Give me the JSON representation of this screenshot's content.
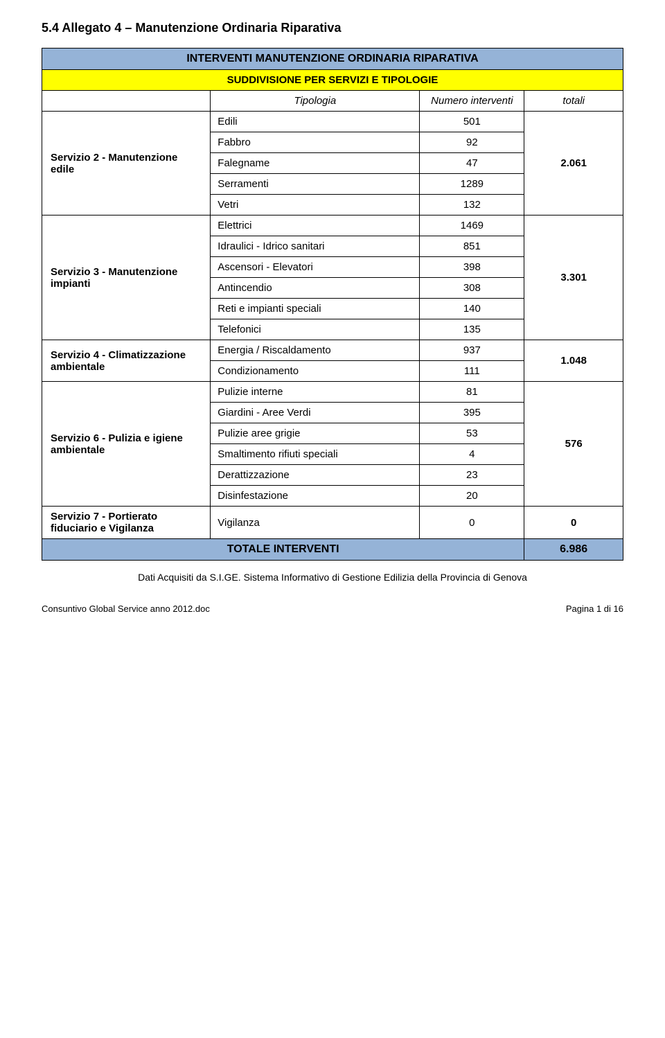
{
  "heading": "5.4   Allegato 4 – Manutenzione Ordinaria Riparativa",
  "table": {
    "header_title": "INTERVENTI MANUTENZIONE ORDINARIA RIPARATIVA",
    "sub_header": "SUDDIVISIONE PER SERVIZI E TIPOLOGIE",
    "col_tipologia": "Tipologia",
    "col_numero": "Numero interventi",
    "col_totali": "totali",
    "groups": [
      {
        "service": "Servizio 2 - Manutenzione edile",
        "totale": "2.061",
        "rows": [
          {
            "t": "Edili",
            "n": "501"
          },
          {
            "t": "Fabbro",
            "n": "92"
          },
          {
            "t": "Falegname",
            "n": "47"
          },
          {
            "t": "Serramenti",
            "n": "1289"
          },
          {
            "t": "Vetri",
            "n": "132"
          }
        ]
      },
      {
        "service": "Servizio 3 - Manutenzione impianti",
        "totale": "3.301",
        "rows": [
          {
            "t": "Elettrici",
            "n": "1469"
          },
          {
            "t": "Idraulici - Idrico sanitari",
            "n": "851"
          },
          {
            "t": "Ascensori - Elevatori",
            "n": "398"
          },
          {
            "t": "Antincendio",
            "n": "308"
          },
          {
            "t": "Reti e impianti speciali",
            "n": "140"
          },
          {
            "t": "Telefonici",
            "n": "135"
          }
        ]
      },
      {
        "service": "Servizio 4 - Climatizzazione ambientale",
        "totale": "1.048",
        "rows": [
          {
            "t": "Energia / Riscaldamento",
            "n": "937"
          },
          {
            "t": "Condizionamento",
            "n": "111"
          }
        ]
      },
      {
        "service": "Servizio 6 - Pulizia e igiene ambientale",
        "totale": "576",
        "rows": [
          {
            "t": "Pulizie interne",
            "n": "81"
          },
          {
            "t": "Giardini - Aree Verdi",
            "n": "395"
          },
          {
            "t": "Pulizie aree grigie",
            "n": "53"
          },
          {
            "t": "Smaltimento rifiuti speciali",
            "n": "4"
          },
          {
            "t": "Derattizzazione",
            "n": "23"
          },
          {
            "t": "Disinfestazione",
            "n": "20"
          }
        ]
      },
      {
        "service": "Servizio 7 - Portierato fiduciario e Vigilanza",
        "totale": "0",
        "rows": [
          {
            "t": "Vigilanza",
            "n": "0"
          }
        ]
      }
    ],
    "total_label": "TOTALE INTERVENTI",
    "total_value": "6.986"
  },
  "footnote": "Dati Acquisiti da S.I.GE. Sistema Informativo di Gestione Edilizia della Provincia di Genova",
  "footer_left": "Consuntivo Global Service anno 2012.doc",
  "footer_right": "Pagina 1 di 16",
  "colors": {
    "header_bg": "#95b3d7",
    "subheader_bg": "#ffff00",
    "border": "#000000",
    "text": "#000000",
    "background": "#ffffff"
  },
  "fontsizes": {
    "heading": 18,
    "header": 16,
    "subheader": 15,
    "body": 15,
    "footnote": 14,
    "footer": 13
  }
}
